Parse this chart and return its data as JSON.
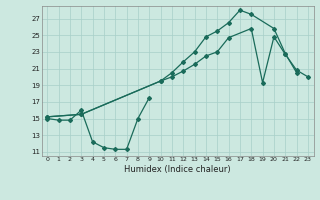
{
  "xlabel": "Humidex (Indice chaleur)",
  "bg_color": "#cce8e0",
  "grid_color": "#a8cfc8",
  "line_color": "#1a6b5a",
  "xlim": [
    -0.5,
    23.5
  ],
  "ylim": [
    10.5,
    28.5
  ],
  "xticks": [
    0,
    1,
    2,
    3,
    4,
    5,
    6,
    7,
    8,
    9,
    10,
    11,
    12,
    13,
    14,
    15,
    16,
    17,
    18,
    19,
    20,
    21,
    22,
    23
  ],
  "yticks": [
    11,
    13,
    15,
    17,
    19,
    21,
    23,
    25,
    27
  ],
  "curve1_x": [
    0,
    1,
    2,
    3,
    4,
    5,
    6,
    7,
    8,
    9
  ],
  "curve1_y": [
    15.0,
    14.8,
    14.8,
    16.0,
    12.2,
    11.5,
    11.3,
    11.3,
    15.0,
    17.5
  ],
  "curve2_x": [
    0,
    3,
    10,
    11,
    12,
    13,
    14,
    15,
    16,
    18,
    19,
    20,
    21,
    22,
    23
  ],
  "curve2_y": [
    15.2,
    15.5,
    19.5,
    20.0,
    20.7,
    21.5,
    22.5,
    23.0,
    24.7,
    25.8,
    19.3,
    24.8,
    22.7,
    20.8,
    20.0
  ],
  "curve3_x": [
    0,
    3,
    10,
    11,
    12,
    13,
    14,
    15,
    16,
    17,
    18,
    20,
    21,
    22
  ],
  "curve3_y": [
    15.2,
    15.5,
    19.5,
    20.5,
    21.8,
    23.0,
    24.8,
    25.5,
    26.5,
    28.0,
    27.5,
    25.8,
    22.8,
    20.5
  ]
}
